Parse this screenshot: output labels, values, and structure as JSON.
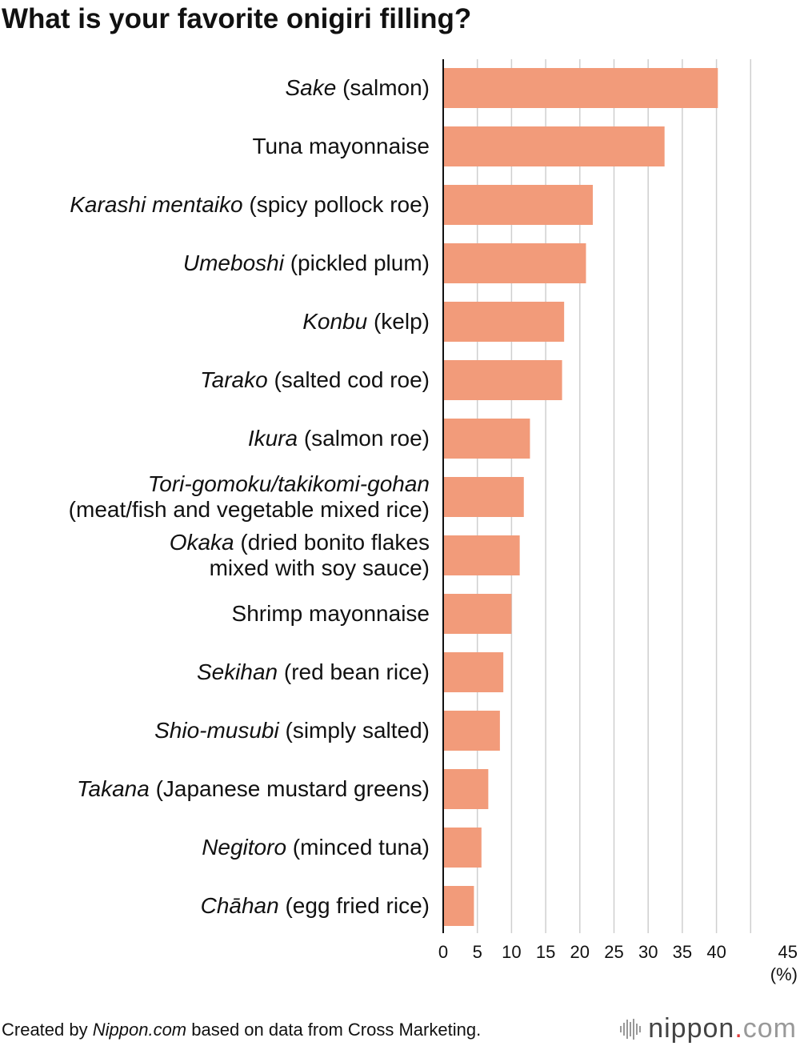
{
  "chart_data": {
    "type": "bar",
    "orientation": "horizontal",
    "title": "What is your favorite onigiri filling?",
    "unit": "(%)",
    "categories": [
      [
        {
          "t": "Sake",
          "i": true
        },
        {
          "t": " (salmon)",
          "i": false
        }
      ],
      [
        {
          "t": "Tuna mayonnaise",
          "i": false
        }
      ],
      [
        {
          "t": "Karashi mentaiko",
          "i": true
        },
        {
          "t": " (spicy pollock roe)",
          "i": false
        }
      ],
      [
        {
          "t": "Umeboshi",
          "i": true
        },
        {
          "t": " (pickled plum)",
          "i": false
        }
      ],
      [
        {
          "t": "Konbu",
          "i": true
        },
        {
          "t": " (kelp)",
          "i": false
        }
      ],
      [
        {
          "t": "Tarako",
          "i": true
        },
        {
          "t": " (salted cod roe)",
          "i": false
        }
      ],
      [
        {
          "t": "Ikura",
          "i": true
        },
        {
          "t": " (salmon roe)",
          "i": false
        }
      ],
      [
        {
          "t": "Tori-gomoku/takikomi-gohan",
          "i": true
        },
        {
          "t": "\n(meat/fish and vegetable mixed rice)",
          "i": false
        }
      ],
      [
        {
          "t": "Okaka",
          "i": true
        },
        {
          "t": " (dried bonito flakes\nmixed with soy sauce)",
          "i": false
        }
      ],
      [
        {
          "t": "Shrimp mayonnaise",
          "i": false
        }
      ],
      [
        {
          "t": "Sekihan",
          "i": true
        },
        {
          "t": " (red bean rice)",
          "i": false
        }
      ],
      [
        {
          "t": "Shio-musubi",
          "i": true
        },
        {
          "t": " (simply salted)",
          "i": false
        }
      ],
      [
        {
          "t": "Takana",
          "i": true
        },
        {
          "t": " (Japanese mustard greens)",
          "i": false
        }
      ],
      [
        {
          "t": "Negitoro",
          "i": true
        },
        {
          "t": " (minced tuna)",
          "i": false
        }
      ],
      [
        {
          "t": "Chāhan",
          "i": true
        },
        {
          "t": " (egg fried rice)",
          "i": false
        }
      ]
    ],
    "values": [
      40.2,
      32.4,
      21.9,
      20.9,
      17.7,
      17.4,
      12.7,
      11.8,
      11.2,
      10.0,
      8.8,
      8.3,
      6.6,
      5.6,
      4.5
    ],
    "xlim": [
      0,
      45
    ],
    "xticks": [
      0,
      5,
      10,
      15,
      20,
      25,
      30,
      35,
      40,
      45
    ],
    "grid": true,
    "bar_color": "#f29b7a",
    "grid_color": "#cfcfcf"
  },
  "footer": {
    "prefix": "Created by ",
    "source_italic": "Nippon.com",
    "suffix": " based on data from Cross Marketing."
  },
  "brand": {
    "name": "nippon",
    "dot": ".",
    "tld": "com"
  }
}
